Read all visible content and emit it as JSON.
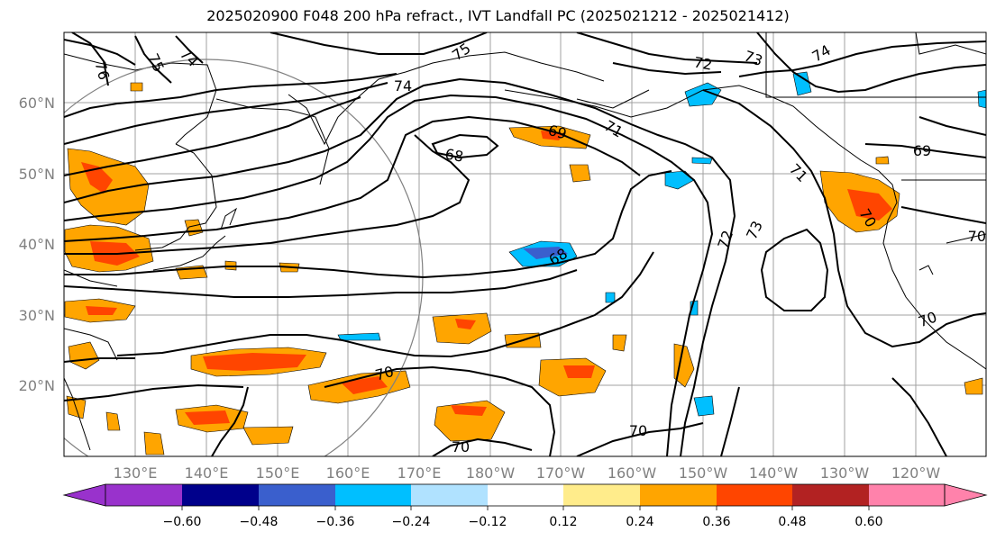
{
  "title": "2025020900 F048 200 hPa refract., IVT Landfall PC (2025021212 - 2025021412)",
  "lat_labels": [
    "60°N",
    "50°N",
    "40°N",
    "30°N",
    "20°N"
  ],
  "lon_labels": [
    "130°E",
    "140°E",
    "150°E",
    "160°E",
    "170°E",
    "180°W",
    "170°W",
    "160°W",
    "150°W",
    "140°W",
    "130°W",
    "120°W"
  ],
  "contour_labels": [
    "76",
    "75",
    "74",
    "75",
    "74",
    "73",
    "72",
    "74",
    "68",
    "69",
    "71",
    "71",
    "69",
    "73",
    "72",
    "68",
    "70",
    "70",
    "70",
    "70",
    "70",
    "70"
  ],
  "colorbar": {
    "ticks": [
      "−0.60",
      "−0.48",
      "−0.36",
      "−0.24",
      "−0.12",
      "0.12",
      "0.24",
      "0.36",
      "0.48",
      "0.60"
    ],
    "colors": [
      "#9932cc",
      "#00008b",
      "#3a5fcd",
      "#00bfff",
      "#b0e2ff",
      "#ffffff",
      "#ffec8b",
      "#ffa500",
      "#ff4500",
      "#b22222",
      "#ff82ab",
      "#ff82ab"
    ]
  }
}
